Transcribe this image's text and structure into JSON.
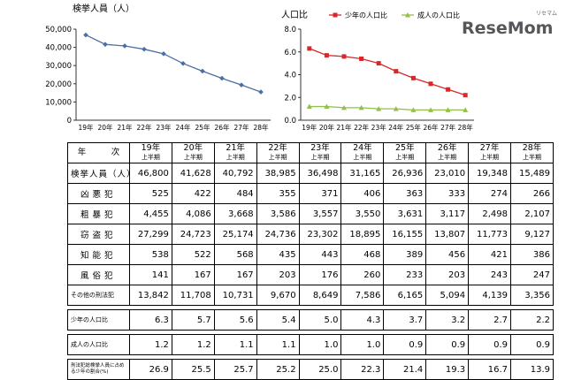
{
  "logo": {
    "text": "ReseMom",
    "kana": "リセマム"
  },
  "chart_data": [
    {
      "type": "line",
      "title": "検挙人員（人）",
      "categories": [
        "19年",
        "20年",
        "21年",
        "22年",
        "23年",
        "24年",
        "25年",
        "26年",
        "27年",
        "28年"
      ],
      "yticks": [
        "0",
        "10,000",
        "20,000",
        "30,000",
        "40,000",
        "50,000"
      ],
      "ylim": [
        0,
        50000
      ],
      "grid": false,
      "color": "#4a6fa5",
      "series": [
        {
          "values": [
            46800,
            41628,
            40792,
            38985,
            36498,
            31165,
            26936,
            23010,
            19348,
            15489
          ]
        }
      ]
    },
    {
      "type": "line",
      "title": "人口比",
      "categories": [
        "19年",
        "20年",
        "21年",
        "22年",
        "23年",
        "24年",
        "25年",
        "26年",
        "27年",
        "28年"
      ],
      "yticks": [
        "0.0",
        "2.0",
        "4.0",
        "6.0",
        "8.0"
      ],
      "ylim": [
        0,
        8
      ],
      "grid": false,
      "legend_position": "top",
      "series": [
        {
          "name": "少年の人口比",
          "color": "#d8282a",
          "values": [
            6.3,
            5.7,
            5.6,
            5.4,
            5.0,
            4.3,
            3.7,
            3.2,
            2.7,
            2.2
          ]
        },
        {
          "name": "成人の人口比",
          "color": "#92c04a",
          "values": [
            1.2,
            1.2,
            1.1,
            1.1,
            1.0,
            1.0,
            0.9,
            0.9,
            0.9,
            0.9
          ]
        }
      ]
    },
    {
      "type": "table",
      "corner": "年　　　次",
      "year_headers": [
        "19年",
        "20年",
        "21年",
        "22年",
        "23年",
        "24年",
        "25年",
        "26年",
        "27年",
        "28年"
      ],
      "period_label": "上半期",
      "rows": [
        {
          "label": "検挙人員（人）",
          "values": [
            "46,800",
            "41,628",
            "40,792",
            "38,985",
            "36,498",
            "31,165",
            "26,936",
            "23,010",
            "19,348",
            "15,489"
          ]
        },
        {
          "label": "凶悪犯",
          "values": [
            "525",
            "422",
            "484",
            "355",
            "371",
            "406",
            "363",
            "333",
            "274",
            "266"
          ]
        },
        {
          "label": "粗暴犯",
          "values": [
            "4,455",
            "4,086",
            "3,668",
            "3,586",
            "3,557",
            "3,550",
            "3,631",
            "3,117",
            "2,498",
            "2,107"
          ]
        },
        {
          "label": "窃盗犯",
          "values": [
            "27,299",
            "24,723",
            "25,174",
            "24,736",
            "23,302",
            "18,895",
            "16,155",
            "13,807",
            "11,773",
            "9,127"
          ]
        },
        {
          "label": "知能犯",
          "values": [
            "538",
            "522",
            "568",
            "435",
            "443",
            "468",
            "389",
            "456",
            "421",
            "386"
          ]
        },
        {
          "label": "風俗犯",
          "values": [
            "141",
            "167",
            "167",
            "203",
            "176",
            "260",
            "233",
            "203",
            "243",
            "247"
          ]
        },
        {
          "label": "その他の刑法犯",
          "values": [
            "13,842",
            "11,708",
            "10,731",
            "9,670",
            "8,649",
            "7,586",
            "6,165",
            "5,094",
            "4,139",
            "3,356"
          ]
        }
      ],
      "youth_ratio": {
        "label": "少年の人口比",
        "values": [
          "6.3",
          "5.7",
          "5.6",
          "5.4",
          "5.0",
          "4.3",
          "3.7",
          "3.2",
          "2.7",
          "2.2"
        ]
      },
      "adult_ratio": {
        "label": "成人の人口比",
        "values": [
          "1.2",
          "1.2",
          "1.1",
          "1.1",
          "1.0",
          "1.0",
          "0.9",
          "0.9",
          "0.9",
          "0.9"
        ]
      },
      "juvenile_share": {
        "label": "刑法犯総検挙人員に占める少年の割合(%)",
        "values": [
          "26.9",
          "25.5",
          "25.7",
          "25.2",
          "25.0",
          "22.3",
          "21.4",
          "19.3",
          "16.7",
          "13.9"
        ]
      }
    }
  ]
}
